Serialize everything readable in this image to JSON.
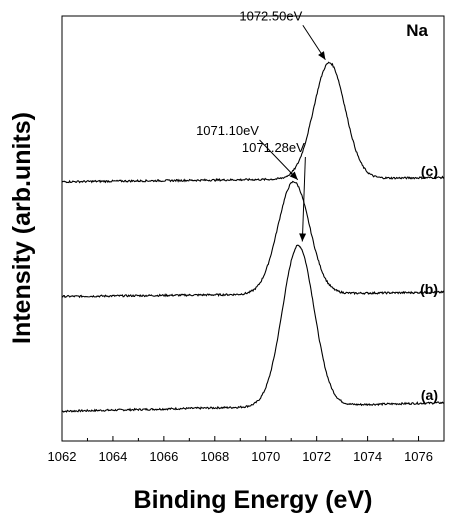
{
  "chart_data": {
    "type": "line",
    "element_label": "Na",
    "xlabel": "Binding Energy (eV)",
    "ylabel": "Intensity (arb.units)",
    "xlim": [
      1062,
      1077
    ],
    "ylim": [
      0,
      100
    ],
    "xticks": [
      1062,
      1064,
      1066,
      1068,
      1070,
      1072,
      1074,
      1076
    ],
    "series": [
      {
        "name": "(a)",
        "peak_x": 1071.28,
        "peak_label": "1071.28eV",
        "base_left": 7,
        "base_right": 9,
        "peak_y": 46
      },
      {
        "name": "(b)",
        "peak_x": 1071.1,
        "peak_label": "1071.10eV",
        "base_left": 34,
        "base_right": 35,
        "peak_y": 61
      },
      {
        "name": "(c)",
        "peak_x": 1072.5,
        "peak_label": "1072.50eV",
        "base_left": 61,
        "base_right": 62,
        "peak_y": 89
      }
    ]
  }
}
